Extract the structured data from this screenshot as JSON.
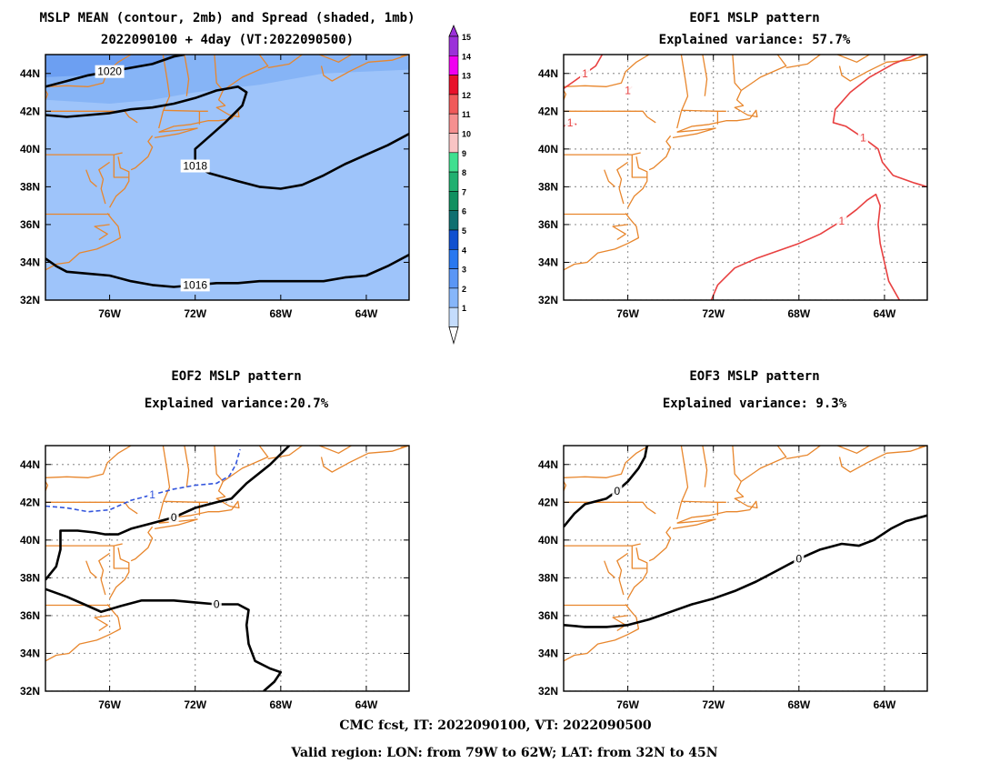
{
  "panels": [
    {
      "id": "mean",
      "title_lines": [
        "MSLP MEAN (contour, 2mb) and Spread (shaded, 1mb)",
        "2022090100 + 4day (VT:2022090500)"
      ],
      "contours": [
        {
          "label": "1020",
          "color": "#000000",
          "dashed": false,
          "points": [
            [
              -79,
              43.3
            ],
            [
              -78,
              43.6
            ],
            [
              -77,
              43.9
            ],
            [
              -76,
              44.1
            ],
            [
              -75,
              44.3
            ],
            [
              -74,
              44.5
            ],
            [
              -73,
              44.9
            ],
            [
              -72.5,
              45
            ]
          ]
        },
        {
          "label": "1018",
          "color": "#000000",
          "dashed": false,
          "points": [
            [
              -79,
              41.8
            ],
            [
              -78,
              41.7
            ],
            [
              -77,
              41.8
            ],
            [
              -76,
              41.9
            ],
            [
              -75,
              42.1
            ],
            [
              -74,
              42.2
            ],
            [
              -73,
              42.4
            ],
            [
              -72,
              42.7
            ],
            [
              -71,
              43.1
            ],
            [
              -70,
              43.3
            ],
            [
              -69.6,
              43.0
            ],
            [
              -69.8,
              42.3
            ],
            [
              -70.6,
              41.4
            ],
            [
              -71.3,
              40.7
            ],
            [
              -72.0,
              40.0
            ],
            [
              -72.0,
              39.1
            ],
            [
              -71.3,
              38.7
            ],
            [
              -70,
              38.3
            ],
            [
              -69,
              38.0
            ],
            [
              -68,
              37.9
            ],
            [
              -67,
              38.1
            ],
            [
              -66,
              38.6
            ],
            [
              -65,
              39.2
            ],
            [
              -64,
              39.7
            ],
            [
              -63,
              40.2
            ],
            [
              -62,
              40.8
            ]
          ]
        },
        {
          "label": "1016",
          "color": "#000000",
          "dashed": false,
          "points": [
            [
              -79,
              34.2
            ],
            [
              -78.5,
              33.8
            ],
            [
              -78,
              33.5
            ],
            [
              -77,
              33.4
            ],
            [
              -76,
              33.3
            ],
            [
              -75,
              33.0
            ],
            [
              -74,
              32.8
            ],
            [
              -73,
              32.7
            ],
            [
              -72,
              32.8
            ],
            [
              -71,
              32.9
            ],
            [
              -70,
              32.9
            ],
            [
              -69,
              33.0
            ],
            [
              -68,
              33.0
            ],
            [
              -67,
              33.0
            ],
            [
              -66,
              33.0
            ],
            [
              -65,
              33.2
            ],
            [
              -64,
              33.3
            ],
            [
              -63,
              33.8
            ],
            [
              -62,
              34.4
            ]
          ]
        }
      ]
    },
    {
      "id": "eof1",
      "title_lines": [
        "EOF1 MSLP pattern",
        "Explained variance: 57.7%"
      ],
      "contours": [
        {
          "label": "1",
          "color": "#e84040",
          "dashed": false,
          "points": [
            [
              -79,
              43.2
            ],
            [
              -78.5,
              43.6
            ],
            [
              -78,
              44.0
            ],
            [
              -77.5,
              44.4
            ],
            [
              -77.2,
              45
            ]
          ]
        },
        {
          "label": "1",
          "color": "#e84040",
          "dashed": false,
          "points": [
            [
              -79,
              41.2
            ],
            [
              -78.7,
              41.4
            ],
            [
              -78.4,
              41.3
            ]
          ]
        },
        {
          "label": "1",
          "color": "#e84040",
          "dashed": false,
          "points": [
            [
              -76.0,
              43.1
            ],
            [
              -75.8,
              43.3
            ]
          ]
        },
        {
          "label": "1",
          "color": "#e84040",
          "dashed": false,
          "points": [
            [
              -62.5,
              45
            ],
            [
              -63.6,
              44.5
            ],
            [
              -64.7,
              43.8
            ],
            [
              -65.6,
              43.0
            ],
            [
              -66.3,
              42.1
            ],
            [
              -66.4,
              41.4
            ],
            [
              -65.8,
              41.2
            ],
            [
              -65.0,
              40.6
            ],
            [
              -64.3,
              40.0
            ],
            [
              -64.1,
              39.3
            ],
            [
              -63.6,
              38.6
            ],
            [
              -62.6,
              38.2
            ],
            [
              -62,
              38.0
            ]
          ]
        },
        {
          "label": "1",
          "color": "#e84040",
          "dashed": false,
          "points": [
            [
              -72.1,
              32
            ],
            [
              -71.8,
              32.8
            ],
            [
              -71.0,
              33.7
            ],
            [
              -70,
              34.2
            ],
            [
              -69,
              34.6
            ],
            [
              -68,
              35.0
            ],
            [
              -67,
              35.5
            ],
            [
              -66,
              36.2
            ],
            [
              -65.3,
              36.8
            ],
            [
              -64.8,
              37.3
            ],
            [
              -64.4,
              37.6
            ],
            [
              -64.2,
              37.0
            ],
            [
              -64.3,
              36.0
            ],
            [
              -64.2,
              35.0
            ],
            [
              -64.0,
              34.0
            ],
            [
              -63.8,
              33.0
            ],
            [
              -63.3,
              32.0
            ]
          ]
        }
      ]
    },
    {
      "id": "eof2",
      "title_lines": [
        "EOF2 MSLP pattern",
        "Explained variance:20.7%"
      ],
      "contours": [
        {
          "label": "1",
          "color": "#3355dd",
          "dashed": true,
          "points": [
            [
              -79,
              41.8
            ],
            [
              -78,
              41.7
            ],
            [
              -77,
              41.5
            ],
            [
              -76,
              41.6
            ],
            [
              -75,
              42.1
            ],
            [
              -74,
              42.4
            ],
            [
              -73,
              42.7
            ],
            [
              -72,
              42.9
            ],
            [
              -71,
              43.0
            ],
            [
              -70.4,
              43.4
            ],
            [
              -70.1,
              44.0
            ],
            [
              -69.9,
              44.8
            ]
          ]
        },
        {
          "label": "0",
          "color": "#000000",
          "dashed": false,
          "points": [
            [
              -79,
              37.9
            ],
            [
              -78.5,
              38.6
            ],
            [
              -78.3,
              39.5
            ],
            [
              -78.3,
              40.5
            ],
            [
              -77.5,
              40.5
            ],
            [
              -76.7,
              40.4
            ],
            [
              -76.2,
              40.3
            ],
            [
              -75.6,
              40.3
            ],
            [
              -75,
              40.6
            ],
            [
              -74,
              40.9
            ],
            [
              -73,
              41.2
            ],
            [
              -72,
              41.7
            ],
            [
              -71,
              42.0
            ],
            [
              -70.3,
              42.2
            ],
            [
              -69.6,
              43.0
            ],
            [
              -68.5,
              44.0
            ],
            [
              -67.6,
              45
            ]
          ]
        },
        {
          "label": "0",
          "color": "#000000",
          "dashed": false,
          "points": [
            [
              -79,
              37.4
            ],
            [
              -78,
              37.0
            ],
            [
              -77,
              36.5
            ],
            [
              -76.4,
              36.2
            ],
            [
              -75.5,
              36.5
            ],
            [
              -74.5,
              36.8
            ],
            [
              -73,
              36.8
            ],
            [
              -72,
              36.7
            ],
            [
              -71,
              36.6
            ],
            [
              -70.0,
              36.6
            ],
            [
              -69.5,
              36.3
            ],
            [
              -69.6,
              35.5
            ],
            [
              -69.5,
              34.5
            ],
            [
              -69.2,
              33.6
            ],
            [
              -68.5,
              33.2
            ],
            [
              -68.0,
              33.0
            ],
            [
              -68.3,
              32.5
            ],
            [
              -68.8,
              32
            ]
          ]
        }
      ]
    },
    {
      "id": "eof3",
      "title_lines": [
        "EOF3 MSLP pattern",
        "Explained variance: 9.3%"
      ],
      "contours": [
        {
          "label": "0",
          "color": "#000000",
          "dashed": false,
          "points": [
            [
              -79,
              40.7
            ],
            [
              -78.5,
              41.4
            ],
            [
              -78,
              41.9
            ],
            [
              -77,
              42.2
            ],
            [
              -76.5,
              42.6
            ],
            [
              -76.0,
              43.1
            ],
            [
              -75.5,
              43.8
            ],
            [
              -75.2,
              44.4
            ],
            [
              -75.1,
              45
            ]
          ]
        },
        {
          "label": "0",
          "color": "#000000",
          "dashed": false,
          "points": [
            [
              -79,
              35.5
            ],
            [
              -78,
              35.4
            ],
            [
              -77,
              35.4
            ],
            [
              -76,
              35.5
            ],
            [
              -75,
              35.8
            ],
            [
              -74,
              36.2
            ],
            [
              -73,
              36.6
            ],
            [
              -72,
              36.9
            ],
            [
              -71,
              37.3
            ],
            [
              -70,
              37.8
            ],
            [
              -69,
              38.4
            ],
            [
              -68,
              39.0
            ],
            [
              -67,
              39.5
            ],
            [
              -66,
              39.8
            ],
            [
              -65.2,
              39.7
            ],
            [
              -64.5,
              40.0
            ],
            [
              -63.7,
              40.6
            ],
            [
              -63,
              41.0
            ],
            [
              -62,
              41.3
            ]
          ]
        }
      ]
    }
  ],
  "map": {
    "lon_range": [
      -79,
      -62
    ],
    "lat_range": [
      32,
      45
    ],
    "lon_ticks": [
      "76W",
      "72W",
      "68W",
      "64W"
    ],
    "lon_tick_values": [
      -76,
      -72,
      -68,
      -64
    ],
    "lat_ticks": [
      "44N",
      "42N",
      "40N",
      "38N",
      "36N",
      "34N",
      "32N"
    ],
    "lat_tick_values": [
      44,
      42,
      40,
      38,
      36,
      34,
      32
    ],
    "grid": "dotted",
    "coast_color": "#e8862c"
  },
  "colorbar": {
    "labels": [
      "15",
      "14",
      "13",
      "12",
      "11",
      "10",
      "9",
      "8",
      "7",
      "6",
      "5",
      "4",
      "3",
      "2",
      "1"
    ],
    "colors": [
      "#9b30d9",
      "#f000f0",
      "#e8102a",
      "#f05a5a",
      "#f59090",
      "#f9c4c4",
      "#40e090",
      "#20b070",
      "#109060",
      "#0f6f70",
      "#1050d0",
      "#2878f0",
      "#5a96f5",
      "#86b6fa",
      "#c4dcfc"
    ]
  },
  "spread_colors": {
    "level1": "#9ec4fa",
    "level2": "#86b4f6",
    "level3": "#6c9ff2"
  },
  "footer": {
    "line1": "CMC fcst, IT: 2022090100, VT: 2022090500",
    "line2": "Valid region: LON: from 79W to 62W; LAT: from 32N to 45N"
  }
}
